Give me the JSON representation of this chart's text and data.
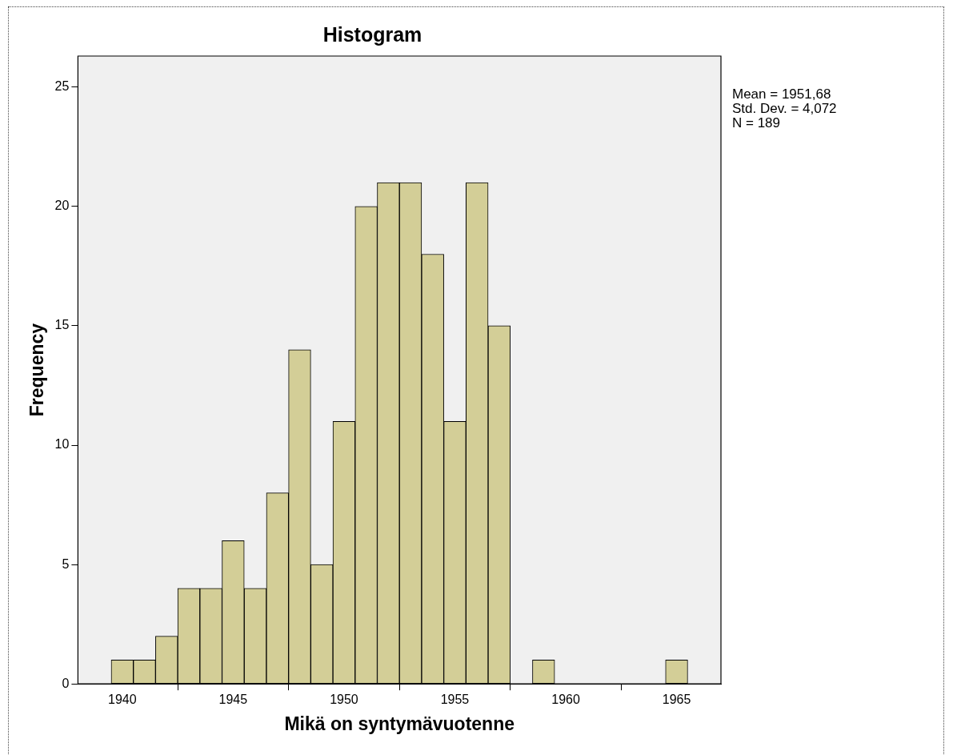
{
  "chart_data": {
    "type": "histogram",
    "title": "Histogram",
    "xlabel": "Mikä on syntymävuotenne",
    "ylabel": "Frequency",
    "bins": [
      1939.5,
      1940.5,
      1941.5,
      1942.5,
      1943.5,
      1944.5,
      1945.5,
      1946.5,
      1947.5,
      1948.5,
      1949.5,
      1950.5,
      1951.5,
      1952.5,
      1953.5,
      1954.5,
      1955.5,
      1956.5,
      1957.5,
      1958.5,
      1959.5,
      1960.5,
      1961.5,
      1962.5,
      1963.5,
      1964.5,
      1965.5
    ],
    "values": [
      1,
      1,
      2,
      4,
      4,
      6,
      4,
      8,
      14,
      5,
      11,
      20,
      21,
      21,
      18,
      11,
      21,
      15,
      0,
      1,
      0,
      0,
      0,
      0,
      0,
      1
    ],
    "color": "#d3ce97",
    "xlim": [
      1938,
      1967
    ],
    "xticks": [
      1940,
      1945,
      1950,
      1955,
      1960,
      1965
    ],
    "ylim": [
      0,
      26.3
    ],
    "yticks": [
      0,
      5,
      10,
      15,
      20,
      25
    ],
    "grid": false,
    "legend": false,
    "annotations": [
      "Mean = 1951,68",
      "Std. Dev. = 4,072",
      "N = 189"
    ]
  }
}
